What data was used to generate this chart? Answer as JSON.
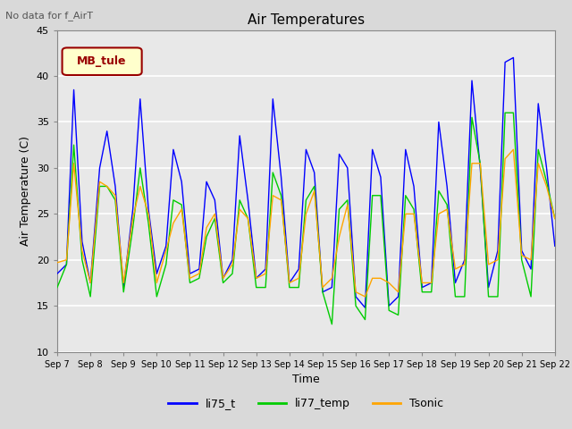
{
  "title": "Air Temperatures",
  "subtitle": "No data for f_AirT",
  "xlabel": "Time",
  "ylabel": "Air Temperature (C)",
  "ylim": [
    10,
    45
  ],
  "background_color": "#d9d9d9",
  "plot_bg_color": "#e8e8e8",
  "legend_label": "MB_tule",
  "legend_labels": [
    "li75_t",
    "li77_temp",
    "Tsonic"
  ],
  "legend_colors": [
    "blue",
    "#00cc00",
    "orange"
  ],
  "x_tick_labels": [
    "Sep 7",
    "Sep 8",
    "Sep 9",
    "Sep 10",
    "Sep 11",
    "Sep 12",
    "Sep 13",
    "Sep 14",
    "Sep 15",
    "Sep 16",
    "Sep 17",
    "Sep 18",
    "Sep 19",
    "Sep 20",
    "Sep 21",
    "Sep 22"
  ],
  "blue_data_x": [
    0,
    0.28,
    0.5,
    0.75,
    1.0,
    1.28,
    1.5,
    1.75,
    2.0,
    2.28,
    2.5,
    2.75,
    3.0,
    3.28,
    3.5,
    3.75,
    4.0,
    4.28,
    4.5,
    4.75,
    5.0,
    5.28,
    5.5,
    5.75,
    6.0,
    6.28,
    6.5,
    6.75,
    7.0,
    7.28,
    7.5,
    7.75,
    8.0,
    8.28,
    8.5,
    8.75,
    9.0,
    9.28,
    9.5,
    9.75,
    10.0,
    10.28,
    10.5,
    10.75,
    11.0,
    11.28,
    11.5,
    11.75,
    12.0,
    12.28,
    12.5,
    12.75,
    13.0,
    13.28,
    13.5,
    13.75,
    14.0,
    14.28,
    14.5,
    14.75,
    15.0
  ],
  "blue_data_y": [
    18.5,
    19.5,
    38.5,
    22.0,
    17.5,
    30.0,
    34.0,
    28.0,
    17.0,
    25.5,
    37.5,
    25.5,
    18.5,
    21.5,
    32.0,
    28.5,
    18.5,
    19.0,
    28.5,
    26.5,
    18.0,
    20.0,
    33.5,
    26.5,
    18.0,
    19.0,
    37.5,
    29.0,
    17.5,
    19.0,
    32.0,
    29.5,
    16.5,
    17.0,
    31.5,
    30.0,
    16.0,
    14.8,
    32.0,
    29.0,
    15.0,
    16.0,
    32.0,
    28.0,
    17.0,
    17.5,
    35.0,
    28.0,
    17.5,
    20.0,
    39.5,
    30.0,
    17.0,
    21.0,
    41.5,
    42.0,
    21.0,
    19.0,
    37.0,
    30.0,
    21.5
  ],
  "green_data_x": [
    0,
    0.28,
    0.5,
    0.75,
    1.0,
    1.28,
    1.5,
    1.75,
    2.0,
    2.28,
    2.5,
    2.75,
    3.0,
    3.28,
    3.5,
    3.75,
    4.0,
    4.28,
    4.5,
    4.75,
    5.0,
    5.28,
    5.5,
    5.75,
    6.0,
    6.28,
    6.5,
    6.75,
    7.0,
    7.28,
    7.5,
    7.75,
    8.0,
    8.28,
    8.5,
    8.75,
    9.0,
    9.28,
    9.5,
    9.75,
    10.0,
    10.28,
    10.5,
    10.75,
    11.0,
    11.28,
    11.5,
    11.75,
    12.0,
    12.28,
    12.5,
    12.75,
    13.0,
    13.28,
    13.5,
    13.75,
    14.0,
    14.28,
    14.5,
    14.75,
    15.0
  ],
  "green_data_y": [
    17.0,
    19.5,
    32.5,
    20.0,
    16.0,
    28.0,
    28.0,
    26.5,
    16.5,
    23.5,
    30.0,
    24.0,
    16.0,
    19.5,
    26.5,
    26.0,
    17.5,
    18.0,
    22.5,
    24.5,
    17.5,
    18.5,
    26.5,
    24.5,
    17.0,
    17.0,
    29.5,
    27.0,
    17.0,
    17.0,
    26.5,
    28.0,
    16.5,
    13.0,
    25.5,
    26.5,
    15.0,
    13.5,
    27.0,
    27.0,
    14.5,
    14.0,
    27.0,
    25.5,
    16.5,
    16.5,
    27.5,
    26.0,
    16.0,
    16.0,
    35.5,
    30.5,
    16.0,
    16.0,
    36.0,
    36.0,
    20.0,
    16.0,
    32.0,
    28.5,
    24.5
  ],
  "orange_data_x": [
    0,
    0.28,
    0.5,
    0.75,
    1.0,
    1.28,
    1.5,
    1.75,
    2.0,
    2.28,
    2.5,
    2.75,
    3.0,
    3.28,
    3.5,
    3.75,
    4.0,
    4.28,
    4.5,
    4.75,
    5.0,
    5.28,
    5.5,
    5.75,
    6.0,
    6.28,
    6.5,
    6.75,
    7.0,
    7.28,
    7.5,
    7.75,
    8.0,
    8.28,
    8.5,
    8.75,
    9.0,
    9.28,
    9.5,
    9.75,
    10.0,
    10.28,
    10.5,
    10.75,
    11.0,
    11.28,
    11.5,
    11.75,
    12.0,
    12.28,
    12.5,
    12.75,
    13.0,
    13.28,
    13.5,
    13.75,
    14.0,
    14.28,
    14.5,
    14.75,
    15.0
  ],
  "orange_data_y": [
    19.7,
    20.0,
    30.5,
    21.0,
    17.5,
    28.5,
    28.0,
    27.0,
    17.5,
    24.5,
    28.0,
    25.0,
    17.5,
    21.0,
    24.0,
    25.5,
    18.0,
    18.5,
    23.5,
    25.0,
    18.0,
    19.5,
    25.5,
    24.5,
    18.0,
    18.5,
    27.0,
    26.5,
    17.5,
    18.0,
    25.0,
    27.5,
    17.0,
    18.0,
    22.5,
    26.0,
    16.5,
    16.0,
    18.0,
    18.0,
    17.5,
    16.5,
    25.0,
    25.0,
    17.5,
    17.5,
    25.0,
    25.5,
    19.0,
    19.5,
    30.5,
    30.5,
    19.5,
    20.0,
    31.0,
    32.0,
    20.5,
    20.0,
    30.5,
    28.0,
    24.5
  ]
}
